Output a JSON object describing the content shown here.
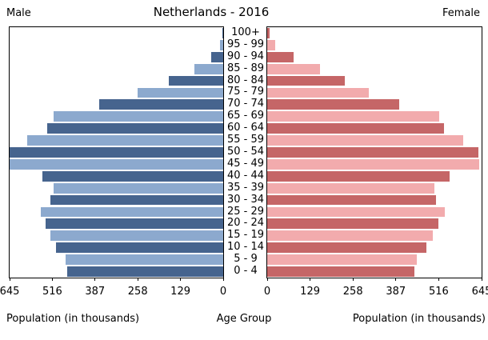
{
  "title": "Netherlands - 2016",
  "left_header": "Male",
  "right_header": "Female",
  "colors": {
    "male_dark": "#46648E",
    "male_light": "#8CA9CE",
    "female_dark": "#C56667",
    "female_light": "#F2ABAD",
    "axis": "#000000",
    "background": "#FFFFFF"
  },
  "chart_data": {
    "type": "bar",
    "subtype": "population-pyramid",
    "title": "Netherlands - 2016",
    "categories_top_to_bottom": [
      "100+",
      "95 - 99",
      "90 - 94",
      "85 - 89",
      "80 - 84",
      "75 - 79",
      "70 - 74",
      "65 - 69",
      "60 - 64",
      "55 - 59",
      "50 - 54",
      "45 - 49",
      "40 - 44",
      "35 - 39",
      "30 - 34",
      "25 - 29",
      "20 - 24",
      "15 - 19",
      "10 - 14",
      "5 - 9",
      "0 - 4"
    ],
    "series": [
      {
        "name": "Male",
        "side": "left",
        "values": [
          3,
          10,
          36,
          87,
          164,
          258,
          374,
          513,
          531,
          591,
          648,
          645,
          546,
          513,
          522,
          551,
          537,
          522,
          505,
          477,
          472
        ]
      },
      {
        "name": "Female",
        "side": "right",
        "values": [
          7,
          24,
          79,
          158,
          234,
          306,
          397,
          518,
          533,
          590,
          635,
          638,
          549,
          502,
          509,
          535,
          514,
          497,
          478,
          449,
          444
        ]
      }
    ],
    "units": "thousands",
    "xlim": [
      0,
      645
    ],
    "xticks": [
      0,
      129,
      258,
      387,
      516,
      645
    ],
    "xlabel_left": "Population (in thousands)",
    "xlabel_right": "Population (in thousands)",
    "center_axis_label": "Age Group",
    "grid": false,
    "legend": false
  }
}
